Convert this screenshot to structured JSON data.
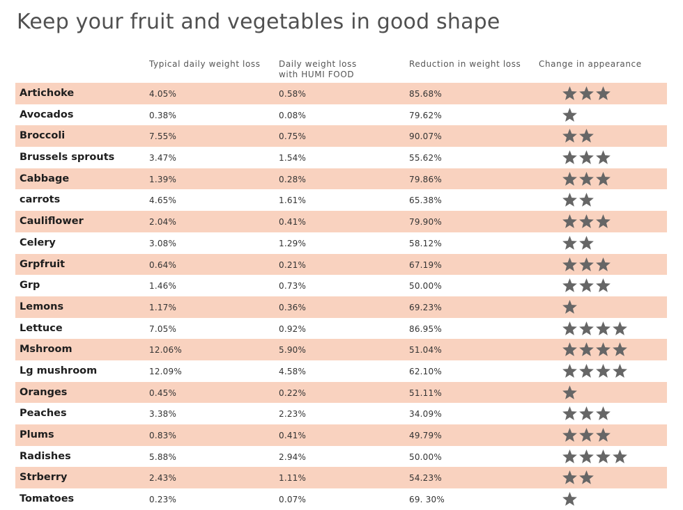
{
  "title": "Keep your fruit and vegetables in good shape",
  "headers": {
    "typical": "Typical daily weight loss",
    "humi_line1": "Daily weight loss",
    "humi_line2": "with HUMI FOOD",
    "reduction": "Reduction in weight loss",
    "appearance": "Change in appearance"
  },
  "chart_data": {
    "type": "table",
    "title": "Keep your fruit and vegetables in good shape",
    "columns": [
      "",
      "Typical daily weight loss",
      "Daily weight loss with HUMI FOOD",
      "Reduction in weight loss",
      "Change in appearance"
    ],
    "rows": [
      {
        "name": "Artichoke",
        "typical": "4.05%",
        "humi": "0.58%",
        "reduction": "85.68%",
        "stars": 3
      },
      {
        "name": "Avocados",
        "typical": "0.38%",
        "humi": "0.08%",
        "reduction": "79.62%",
        "stars": 1
      },
      {
        "name": "Broccoli",
        "typical": "7.55%",
        "humi": "0.75%",
        "reduction": "90.07%",
        "stars": 2
      },
      {
        "name": "Brussels sprouts",
        "typical": "3.47%",
        "humi": "1.54%",
        "reduction": "55.62%",
        "stars": 3
      },
      {
        "name": "Cabbage",
        "typical": "1.39%",
        "humi": "0.28%",
        "reduction": "79.86%",
        "stars": 3
      },
      {
        "name": "carrots",
        "typical": "4.65%",
        "humi": "1.61%",
        "reduction": "65.38%",
        "stars": 2
      },
      {
        "name": "Cauliflower",
        "typical": "2.04%",
        "humi": "0.41%",
        "reduction": "79.90%",
        "stars": 3
      },
      {
        "name": "Celery",
        "typical": "3.08%",
        "humi": "1.29%",
        "reduction": "58.12%",
        "stars": 2
      },
      {
        "name": "Grpfruit",
        "typical": "0.64%",
        "humi": "0.21%",
        "reduction": "67.19%",
        "stars": 3
      },
      {
        "name": "Grp",
        "typical": "1.46%",
        "humi": "0.73%",
        "reduction": "50.00%",
        "stars": 3
      },
      {
        "name": "Lemons",
        "typical": "1.17%",
        "humi": "0.36%",
        "reduction": "69.23%",
        "stars": 1
      },
      {
        "name": "Lettuce",
        "typical": "7.05%",
        "humi": "0.92%",
        "reduction": "86.95%",
        "stars": 4
      },
      {
        "name": "Mshroom",
        "typical": "12.06%",
        "humi": "5.90%",
        "reduction": "51.04%",
        "stars": 4
      },
      {
        "name": "Lg mushroom",
        "typical": "12.09%",
        "humi": "4.58%",
        "reduction": "62.10%",
        "stars": 4
      },
      {
        "name": "Oranges",
        "typical": "0.45%",
        "humi": "0.22%",
        "reduction": "51.11%",
        "stars": 1
      },
      {
        "name": "Peaches",
        "typical": "3.38%",
        "humi": "2.23%",
        "reduction": "34.09%",
        "stars": 3
      },
      {
        "name": "Plums",
        "typical": "0.83%",
        "humi": "0.41%",
        "reduction": "49.79%",
        "stars": 3
      },
      {
        "name": "Radishes",
        "typical": "5.88%",
        "humi": "2.94%",
        "reduction": "50.00%",
        "stars": 4
      },
      {
        "name": "Strberry",
        "typical": "2.43%",
        "humi": "1.11%",
        "reduction": "54.23%",
        "stars": 2
      },
      {
        "name": "Tomatoes",
        "typical": "0.23%",
        "humi": "0.07%",
        "reduction": "69. 30%",
        "stars": 1
      }
    ]
  },
  "colors": {
    "shade": "#f9d2bf",
    "star": "#666666"
  },
  "icon": "star-icon"
}
